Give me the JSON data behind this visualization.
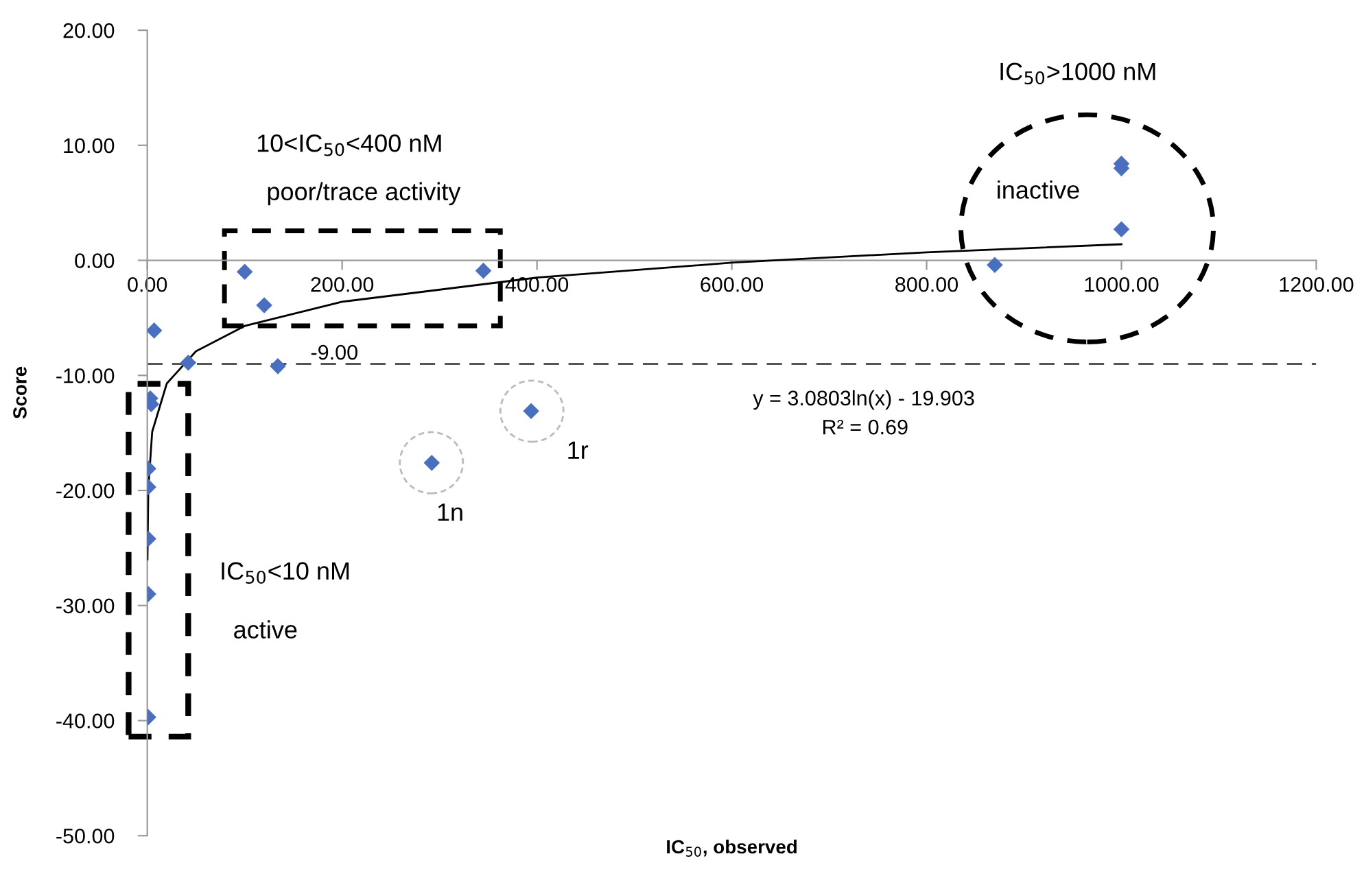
{
  "chart_data": {
    "type": "scatter",
    "xlabel": "IC$_{50}$, observed",
    "ylabel": "Score",
    "xlim": [
      0,
      1200
    ],
    "xticks": [
      {
        "value": 0,
        "label": "0.00"
      },
      {
        "value": 200,
        "label": "200.00"
      },
      {
        "value": 400,
        "label": "400.00"
      },
      {
        "value": 600,
        "label": "600.00"
      },
      {
        "value": 800,
        "label": "800.00"
      },
      {
        "value": 1000,
        "label": "1000.00"
      },
      {
        "value": 1200,
        "label": "1200.00"
      }
    ],
    "ylim": [
      -50,
      20
    ],
    "yticks": [
      {
        "value": -50,
        "label": "-50.00"
      },
      {
        "value": -40,
        "label": "-40.00"
      },
      {
        "value": -30,
        "label": "-30.00"
      },
      {
        "value": -20,
        "label": "-20.00"
      },
      {
        "value": -10,
        "label": "-10.00"
      },
      {
        "value": 0,
        "label": "0.00"
      },
      {
        "value": 10,
        "label": "10.00"
      },
      {
        "value": 20,
        "label": "20.00"
      }
    ],
    "grid": false,
    "legend": false,
    "series": [
      {
        "marker": "diamond",
        "color": "#4a6fbf",
        "x": [
          100,
          120,
          345,
          7,
          42,
          134,
          3,
          4,
          394,
          292,
          1,
          1,
          1,
          1,
          1,
          1000,
          1000,
          1000,
          870
        ],
        "values": [
          -1.0,
          -3.9,
          -0.9,
          -6.1,
          -8.9,
          -9.2,
          -12.0,
          -12.5,
          -13.1,
          -17.6,
          -18.1,
          -19.7,
          -24.2,
          -29.0,
          -39.7,
          8.4,
          8.0,
          2.7,
          -0.4
        ]
      },
      {
        "type": "line",
        "marker": "none",
        "color": "#000000",
        "x": [
          0.14,
          1,
          5,
          20,
          50,
          100,
          200,
          400,
          600,
          800,
          1000
        ],
        "values": [
          -26.0,
          -19.9,
          -14.9,
          -10.7,
          -7.9,
          -5.7,
          -3.6,
          -1.5,
          -0.2,
          0.7,
          1.4
        ]
      }
    ],
    "ref_lines": [
      {
        "axis": "y",
        "value": -9,
        "label": "-9.00",
        "color": "#555555",
        "line_style": "dashed"
      }
    ],
    "annotations": [
      "10<IC$_{50}$<400 nM",
      "poor/trace activity",
      "IC$_{50}$>1000 nM",
      "inactive",
      "IC$_{50}$<10 nM",
      "active",
      "1n",
      "1r",
      "y = 3.0803ln(x) - 19.903",
      "R² = 0.69"
    ]
  }
}
